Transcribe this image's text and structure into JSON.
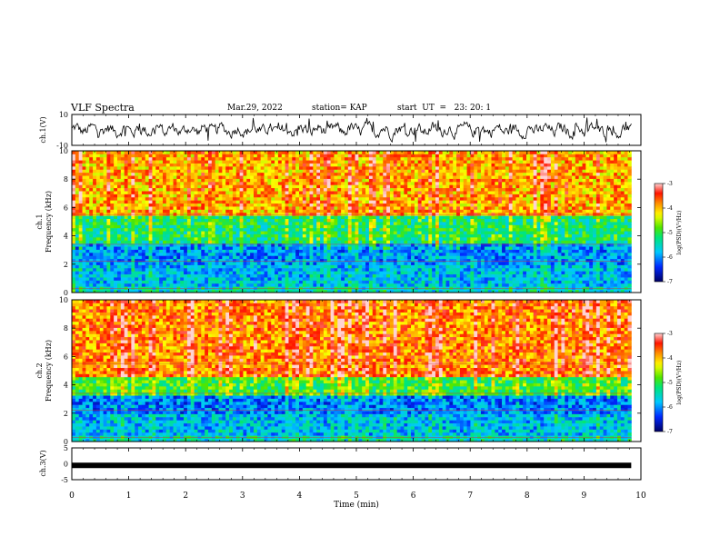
{
  "header": {
    "title": "VLF Spectra",
    "date": "Mar.29, 2022",
    "station": "station= KAP",
    "start_ut": "start  UT  =   23: 20: 1"
  },
  "chart_data": [
    {
      "type": "line",
      "panel": "ch1-waveform",
      "ylabel": "ch.1(V)",
      "ylim": [
        -10,
        10
      ],
      "y_ticks": [
        "10",
        "-10"
      ],
      "x_range_min": [
        0,
        9.83
      ],
      "description_values": "noisy waveform oscillating roughly between -6 and 6 V"
    },
    {
      "type": "heatmap",
      "panel": "ch1-spectrogram",
      "ylabel": "ch.1\nFrequency (kHz)",
      "ylabel_line1": "ch.1",
      "ylabel_line2": "Frequency (kHz)",
      "ylim": [
        0,
        10
      ],
      "y_ticks": [
        "0",
        "2",
        "4",
        "6",
        "8",
        "10"
      ],
      "x_range_min": [
        0,
        9.83
      ],
      "colorbar": {
        "label": "log(PSD)(V²/Hz)",
        "range": [
          -7,
          -3
        ],
        "ticks": [
          "-3",
          "-4",
          "-5",
          "-6",
          "-7"
        ]
      },
      "bands_khz": [
        {
          "from": 0,
          "to": 0.5,
          "level": -5.5
        },
        {
          "from": 0.5,
          "to": 2.0,
          "level": -5.8
        },
        {
          "from": 2.0,
          "to": 3.5,
          "level": -6.0
        },
        {
          "from": 3.5,
          "to": 5.5,
          "level": -5.2
        },
        {
          "from": 5.5,
          "to": 10,
          "level": -4.0
        }
      ]
    },
    {
      "type": "heatmap",
      "panel": "ch2-spectrogram",
      "ylabel_line1": "ch.2",
      "ylabel_line2": "Frequency (kHz)",
      "ylim": [
        0,
        10
      ],
      "y_ticks": [
        "0",
        "2",
        "4",
        "6",
        "8",
        "10"
      ],
      "x_range_min": [
        0,
        9.83
      ],
      "colorbar": {
        "label": "log(PSD)(V²/Hz)",
        "range": [
          -7,
          -3
        ],
        "ticks": [
          "-3",
          "-4",
          "-5",
          "-6",
          "-7"
        ]
      },
      "bands_khz": [
        {
          "from": 0,
          "to": 0.5,
          "level": -5.5
        },
        {
          "from": 0.5,
          "to": 2.0,
          "level": -5.8
        },
        {
          "from": 2.0,
          "to": 3.3,
          "level": -6.1
        },
        {
          "from": 3.3,
          "to": 4.5,
          "level": -5.0
        },
        {
          "from": 4.5,
          "to": 10,
          "level": -3.8
        }
      ]
    },
    {
      "type": "line",
      "panel": "ch3-waveform",
      "ylabel": "ch.3(V)",
      "ylim": [
        -5,
        5
      ],
      "y_ticks": [
        "5",
        "0",
        "-5"
      ],
      "x_range_min": [
        0,
        9.83
      ],
      "constant_value": -0.5
    }
  ],
  "x_axis": {
    "label": "Time (min)",
    "ticks": [
      "0",
      "1",
      "2",
      "3",
      "4",
      "5",
      "6",
      "7",
      "8",
      "9",
      "10"
    ],
    "range": [
      0,
      10
    ]
  }
}
